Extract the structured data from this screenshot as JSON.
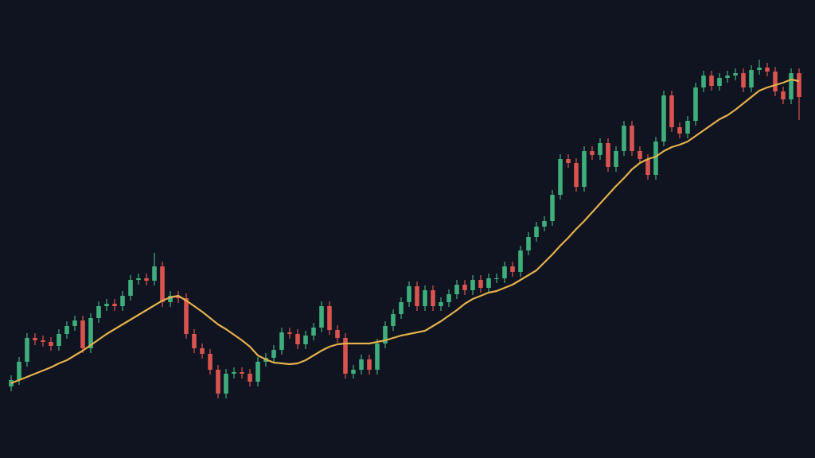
{
  "chart_data": {
    "type": "candlestick",
    "ylim": [
      0,
      576
    ],
    "background": "#0f1420",
    "up_color": "#3fae7c",
    "down_color": "#d9534f",
    "open": [
      90,
      98,
      121,
      151,
      148,
      146,
      141,
      156,
      166,
      173,
      138,
      176,
      191,
      194,
      191,
      204,
      224,
      226,
      223,
      241,
      196,
      204,
      201,
      156,
      138,
      131,
      111,
      81,
      106,
      108,
      106,
      96,
      121,
      126,
      136,
      158,
      156,
      143,
      154,
      164,
      191,
      161,
      151,
      106,
      111,
      124,
      111,
      144,
      166,
      181,
      196,
      216,
      191,
      211,
      191,
      196,
      206,
      218,
      211,
      224,
      214,
      226,
      226,
      241,
      234,
      261,
      278,
      291,
      298,
      331,
      376,
      371,
      341,
      386,
      381,
      396,
      366,
      386,
      418,
      386,
      376,
      356,
      398,
      456,
      416,
      408,
      424,
      466,
      481,
      468,
      478,
      481,
      484,
      466,
      488,
      491,
      486,
      461,
      451,
      484
    ],
    "high": [
      104,
      127,
      157,
      157,
      154,
      152,
      162,
      172,
      179,
      179,
      182,
      197,
      200,
      200,
      210,
      230,
      232,
      232,
      258,
      247,
      210,
      210,
      207,
      162,
      144,
      137,
      117,
      112,
      114,
      114,
      112,
      127,
      132,
      142,
      164,
      164,
      162,
      160,
      170,
      197,
      197,
      167,
      157,
      117,
      130,
      130,
      150,
      172,
      187,
      202,
      222,
      222,
      217,
      217,
      202,
      212,
      224,
      224,
      230,
      230,
      232,
      232,
      247,
      247,
      267,
      284,
      297,
      304,
      337,
      382,
      382,
      377,
      392,
      392,
      402,
      402,
      392,
      424,
      424,
      392,
      382,
      404,
      462,
      462,
      422,
      430,
      472,
      487,
      487,
      484,
      487,
      490,
      490,
      494,
      501,
      497,
      492,
      467,
      490,
      490
    ],
    "low": [
      84,
      92,
      115,
      142,
      140,
      135,
      135,
      150,
      160,
      132,
      132,
      170,
      185,
      185,
      185,
      198,
      218,
      217,
      217,
      190,
      190,
      195,
      150,
      132,
      125,
      105,
      75,
      75,
      100,
      100,
      90,
      90,
      115,
      120,
      130,
      150,
      137,
      137,
      148,
      158,
      155,
      145,
      100,
      100,
      105,
      105,
      105,
      138,
      160,
      175,
      190,
      185,
      185,
      185,
      185,
      190,
      200,
      205,
      205,
      208,
      208,
      220,
      220,
      228,
      228,
      255,
      272,
      285,
      292,
      325,
      365,
      335,
      335,
      375,
      375,
      360,
      360,
      380,
      380,
      370,
      350,
      350,
      392,
      410,
      402,
      402,
      418,
      460,
      462,
      462,
      472,
      475,
      460,
      460,
      482,
      480,
      455,
      445,
      445,
      425
    ],
    "close": [
      98,
      121,
      151,
      148,
      146,
      141,
      156,
      166,
      173,
      138,
      176,
      191,
      194,
      191,
      204,
      224,
      226,
      223,
      241,
      196,
      204,
      201,
      156,
      138,
      131,
      111,
      81,
      106,
      108,
      106,
      96,
      121,
      126,
      136,
      158,
      156,
      143,
      154,
      164,
      191,
      161,
      151,
      106,
      111,
      124,
      111,
      144,
      166,
      181,
      196,
      216,
      191,
      211,
      191,
      196,
      206,
      218,
      211,
      224,
      214,
      226,
      226,
      241,
      234,
      261,
      278,
      291,
      298,
      331,
      376,
      371,
      341,
      386,
      381,
      396,
      366,
      386,
      418,
      386,
      376,
      356,
      398,
      456,
      416,
      408,
      424,
      466,
      481,
      468,
      478,
      481,
      484,
      466,
      488,
      491,
      486,
      461,
      451,
      484,
      454
    ],
    "moving_average": {
      "color": "#e3b04b",
      "values": [
        94,
        98,
        102,
        106,
        110,
        114,
        119,
        123,
        129,
        135,
        142,
        149,
        156,
        162,
        168,
        174,
        180,
        186,
        192,
        198,
        202,
        204,
        198,
        191,
        184,
        176,
        168,
        162,
        155,
        148,
        140,
        129,
        124,
        120,
        119,
        118,
        119,
        123,
        129,
        135,
        140,
        143,
        144,
        144,
        144,
        144,
        146,
        148,
        151,
        154,
        156,
        158,
        160,
        166,
        172,
        179,
        186,
        194,
        200,
        204,
        208,
        210,
        214,
        218,
        224,
        230,
        236,
        246,
        256,
        267,
        277,
        288,
        298,
        309,
        320,
        331,
        342,
        352,
        363,
        371,
        376,
        379,
        386,
        391,
        394,
        398,
        405,
        412,
        419,
        426,
        431,
        438,
        446,
        454,
        462,
        466,
        469,
        472,
        476,
        474
      ]
    }
  }
}
